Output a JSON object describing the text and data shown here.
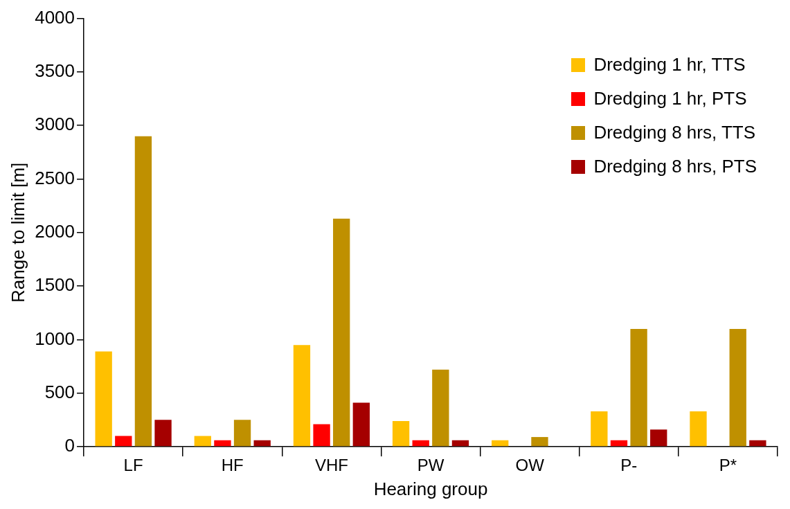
{
  "chart_data": {
    "type": "bar",
    "xlabel": "Hearing group",
    "ylabel": "Range to limit [m]",
    "categories": [
      "LF",
      "HF",
      "VHF",
      "PW",
      "OW",
      "P-",
      "P*"
    ],
    "series": [
      {
        "name": "Dredging 1 hr, TTS",
        "color": "#ffc000",
        "values": [
          890,
          100,
          950,
          240,
          60,
          330,
          330
        ]
      },
      {
        "name": "Dredging 1 hr, PTS",
        "color": "#ff0000",
        "values": [
          100,
          60,
          210,
          60,
          0,
          60,
          0
        ]
      },
      {
        "name": "Dredging 8 hrs, TTS",
        "color": "#bf9000",
        "values": [
          2900,
          250,
          2130,
          720,
          90,
          1100,
          1100
        ]
      },
      {
        "name": "Dredging 8 hrs, PTS",
        "color": "#a50000",
        "values": [
          250,
          60,
          410,
          60,
          0,
          160,
          60
        ]
      }
    ],
    "ylim": [
      0,
      4000
    ],
    "yticks": [
      0,
      500,
      1000,
      1500,
      2000,
      2500,
      3000,
      3500,
      4000
    ],
    "grid": false,
    "legend": "top right"
  }
}
